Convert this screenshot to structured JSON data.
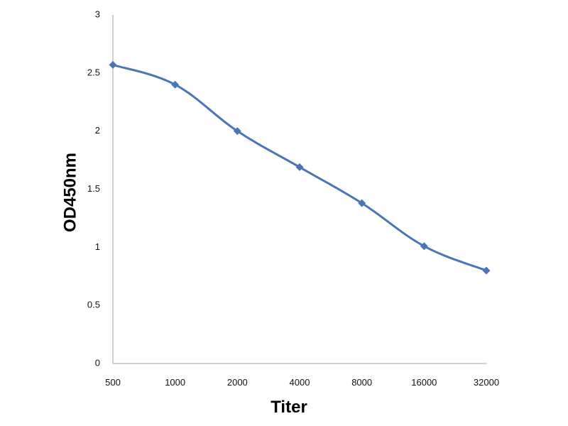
{
  "chart_data": {
    "type": "line",
    "categories": [
      "500",
      "1000",
      "2000",
      "4000",
      "8000",
      "16000",
      "32000"
    ],
    "series": [
      {
        "values": [
          2.57,
          2.4,
          2.0,
          1.69,
          1.38,
          1.01,
          0.8
        ]
      }
    ],
    "xlabel": "Titer",
    "ylabel": "OD450nm",
    "ylim": [
      0,
      3
    ],
    "yticks": [
      "0",
      "0.5",
      "1",
      "1.5",
      "2",
      "2.5",
      "3"
    ],
    "grid": false,
    "legend": false,
    "colors": {
      "series": "#4a76b5",
      "axis": "#a0a0a0",
      "text": "#111111"
    }
  }
}
